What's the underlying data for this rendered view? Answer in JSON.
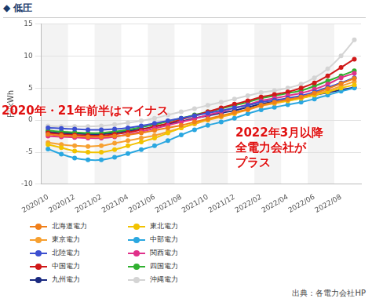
{
  "chart_data": {
    "type": "line",
    "title": "◆ 低圧",
    "y_label": "円/kWh",
    "annotations": [
      "2020年・21年前半はマイナス",
      "2022年3月以降\n全電力会社が\nプラス"
    ],
    "source": "出典：各電力会社HP",
    "categories": [
      "2020/10",
      null,
      "2020/12",
      null,
      "2021/02",
      null,
      "2021/04",
      null,
      "2021/06",
      null,
      "2021/08",
      null,
      "2021/10",
      null,
      "2021/12",
      null,
      "2022/02",
      null,
      "2022/04",
      null,
      "2022/06",
      null,
      "2022/08",
      null
    ],
    "ylim": [
      -10,
      15
    ],
    "yticks": [
      -10,
      -5,
      0,
      5,
      10,
      15
    ],
    "grid": true,
    "legend": "bottom",
    "marker": "circle",
    "series": [
      {
        "name": "北海道電力",
        "color": "#f07f1a",
        "values": [
          -2.2,
          -2.4,
          -2.5,
          -2.6,
          -2.6,
          -2.5,
          -2.3,
          -2.0,
          -1.6,
          -1.2,
          -0.8,
          -0.3,
          0.2,
          0.7,
          1.2,
          1.7,
          2.3,
          2.8,
          3.2,
          3.6,
          4.2,
          4.9,
          5.7,
          6.5
        ]
      },
      {
        "name": "東北電力",
        "color": "#f2c200",
        "values": [
          -3.8,
          -4.3,
          -4.8,
          -5.0,
          -5.0,
          -4.6,
          -4.0,
          -3.4,
          -2.8,
          -2.0,
          -1.2,
          -0.5,
          0.1,
          0.6,
          1.1,
          1.7,
          2.3,
          2.7,
          3.0,
          3.4,
          3.9,
          4.4,
          5.0,
          5.5
        ]
      },
      {
        "name": "東京電力",
        "color": "#f7a030",
        "values": [
          -3.5,
          -3.8,
          -4.0,
          -4.1,
          -4.0,
          -3.6,
          -3.2,
          -2.8,
          -2.4,
          -1.8,
          -1.2,
          -0.6,
          0.0,
          0.5,
          1.0,
          1.6,
          2.2,
          2.6,
          3.0,
          3.4,
          4.0,
          4.6,
          5.3,
          6.0
        ]
      },
      {
        "name": "中部電力",
        "color": "#2aa7e0",
        "values": [
          -4.5,
          -5.3,
          -5.9,
          -6.2,
          -6.2,
          -5.8,
          -5.2,
          -4.6,
          -4.0,
          -3.2,
          -2.3,
          -1.5,
          -0.8,
          -0.3,
          0.3,
          1.0,
          1.6,
          2.0,
          2.4,
          2.8,
          3.3,
          3.9,
          4.5,
          5.0
        ]
      },
      {
        "name": "北陸電力",
        "color": "#3c4fd0",
        "values": [
          -1.2,
          -1.3,
          -1.4,
          -1.5,
          -1.5,
          -1.4,
          -1.2,
          -0.9,
          -0.5,
          -0.1,
          0.3,
          0.7,
          1.1,
          1.5,
          1.9,
          2.3,
          2.8,
          3.1,
          3.4,
          3.8,
          4.4,
          5.1,
          5.8,
          6.6
        ]
      },
      {
        "name": "関西電力",
        "color": "#e0308a",
        "values": [
          -2.5,
          -2.6,
          -2.7,
          -2.8,
          -2.8,
          -2.6,
          -2.2,
          -1.8,
          -1.3,
          -0.8,
          -0.3,
          0.2,
          0.8,
          1.3,
          1.9,
          2.4,
          3.0,
          3.4,
          3.8,
          4.2,
          4.8,
          5.6,
          6.6,
          7.3
        ]
      },
      {
        "name": "中国電力",
        "color": "#d01818",
        "values": [
          -2.0,
          -2.2,
          -2.3,
          -2.4,
          -2.4,
          -2.2,
          -1.9,
          -1.5,
          -1.0,
          -0.5,
          0.1,
          0.7,
          1.3,
          1.9,
          2.5,
          3.0,
          3.6,
          4.0,
          4.4,
          5.0,
          5.8,
          6.9,
          8.2,
          9.5
        ]
      },
      {
        "name": "四国電力",
        "color": "#30b030",
        "values": [
          -1.6,
          -1.8,
          -1.9,
          -2.0,
          -2.0,
          -1.8,
          -1.5,
          -1.1,
          -0.7,
          -0.2,
          0.3,
          0.8,
          1.3,
          1.8,
          2.3,
          2.8,
          3.4,
          3.8,
          4.2,
          4.6,
          5.3,
          6.1,
          6.9,
          7.7
        ]
      },
      {
        "name": "九州電力",
        "color": "#1a2a80",
        "values": [
          -1.8,
          -2.0,
          -2.1,
          -2.2,
          -2.2,
          -2.0,
          -1.7,
          -1.4,
          -1.0,
          -0.6,
          -0.2,
          0.3,
          0.7,
          1.1,
          1.5,
          2.0,
          2.5,
          2.9,
          3.2,
          3.5,
          3.9,
          4.3,
          4.7,
          5.1
        ]
      },
      {
        "name": "沖縄電力",
        "color": "#d4d4d4",
        "values": [
          -0.9,
          -1.0,
          -1.0,
          -1.0,
          -0.9,
          -0.7,
          -0.4,
          -0.1,
          0.3,
          0.8,
          1.3,
          1.8,
          2.3,
          2.8,
          3.3,
          3.8,
          4.3,
          4.6,
          5.0,
          5.6,
          6.6,
          8.0,
          10.0,
          12.5
        ]
      }
    ]
  }
}
